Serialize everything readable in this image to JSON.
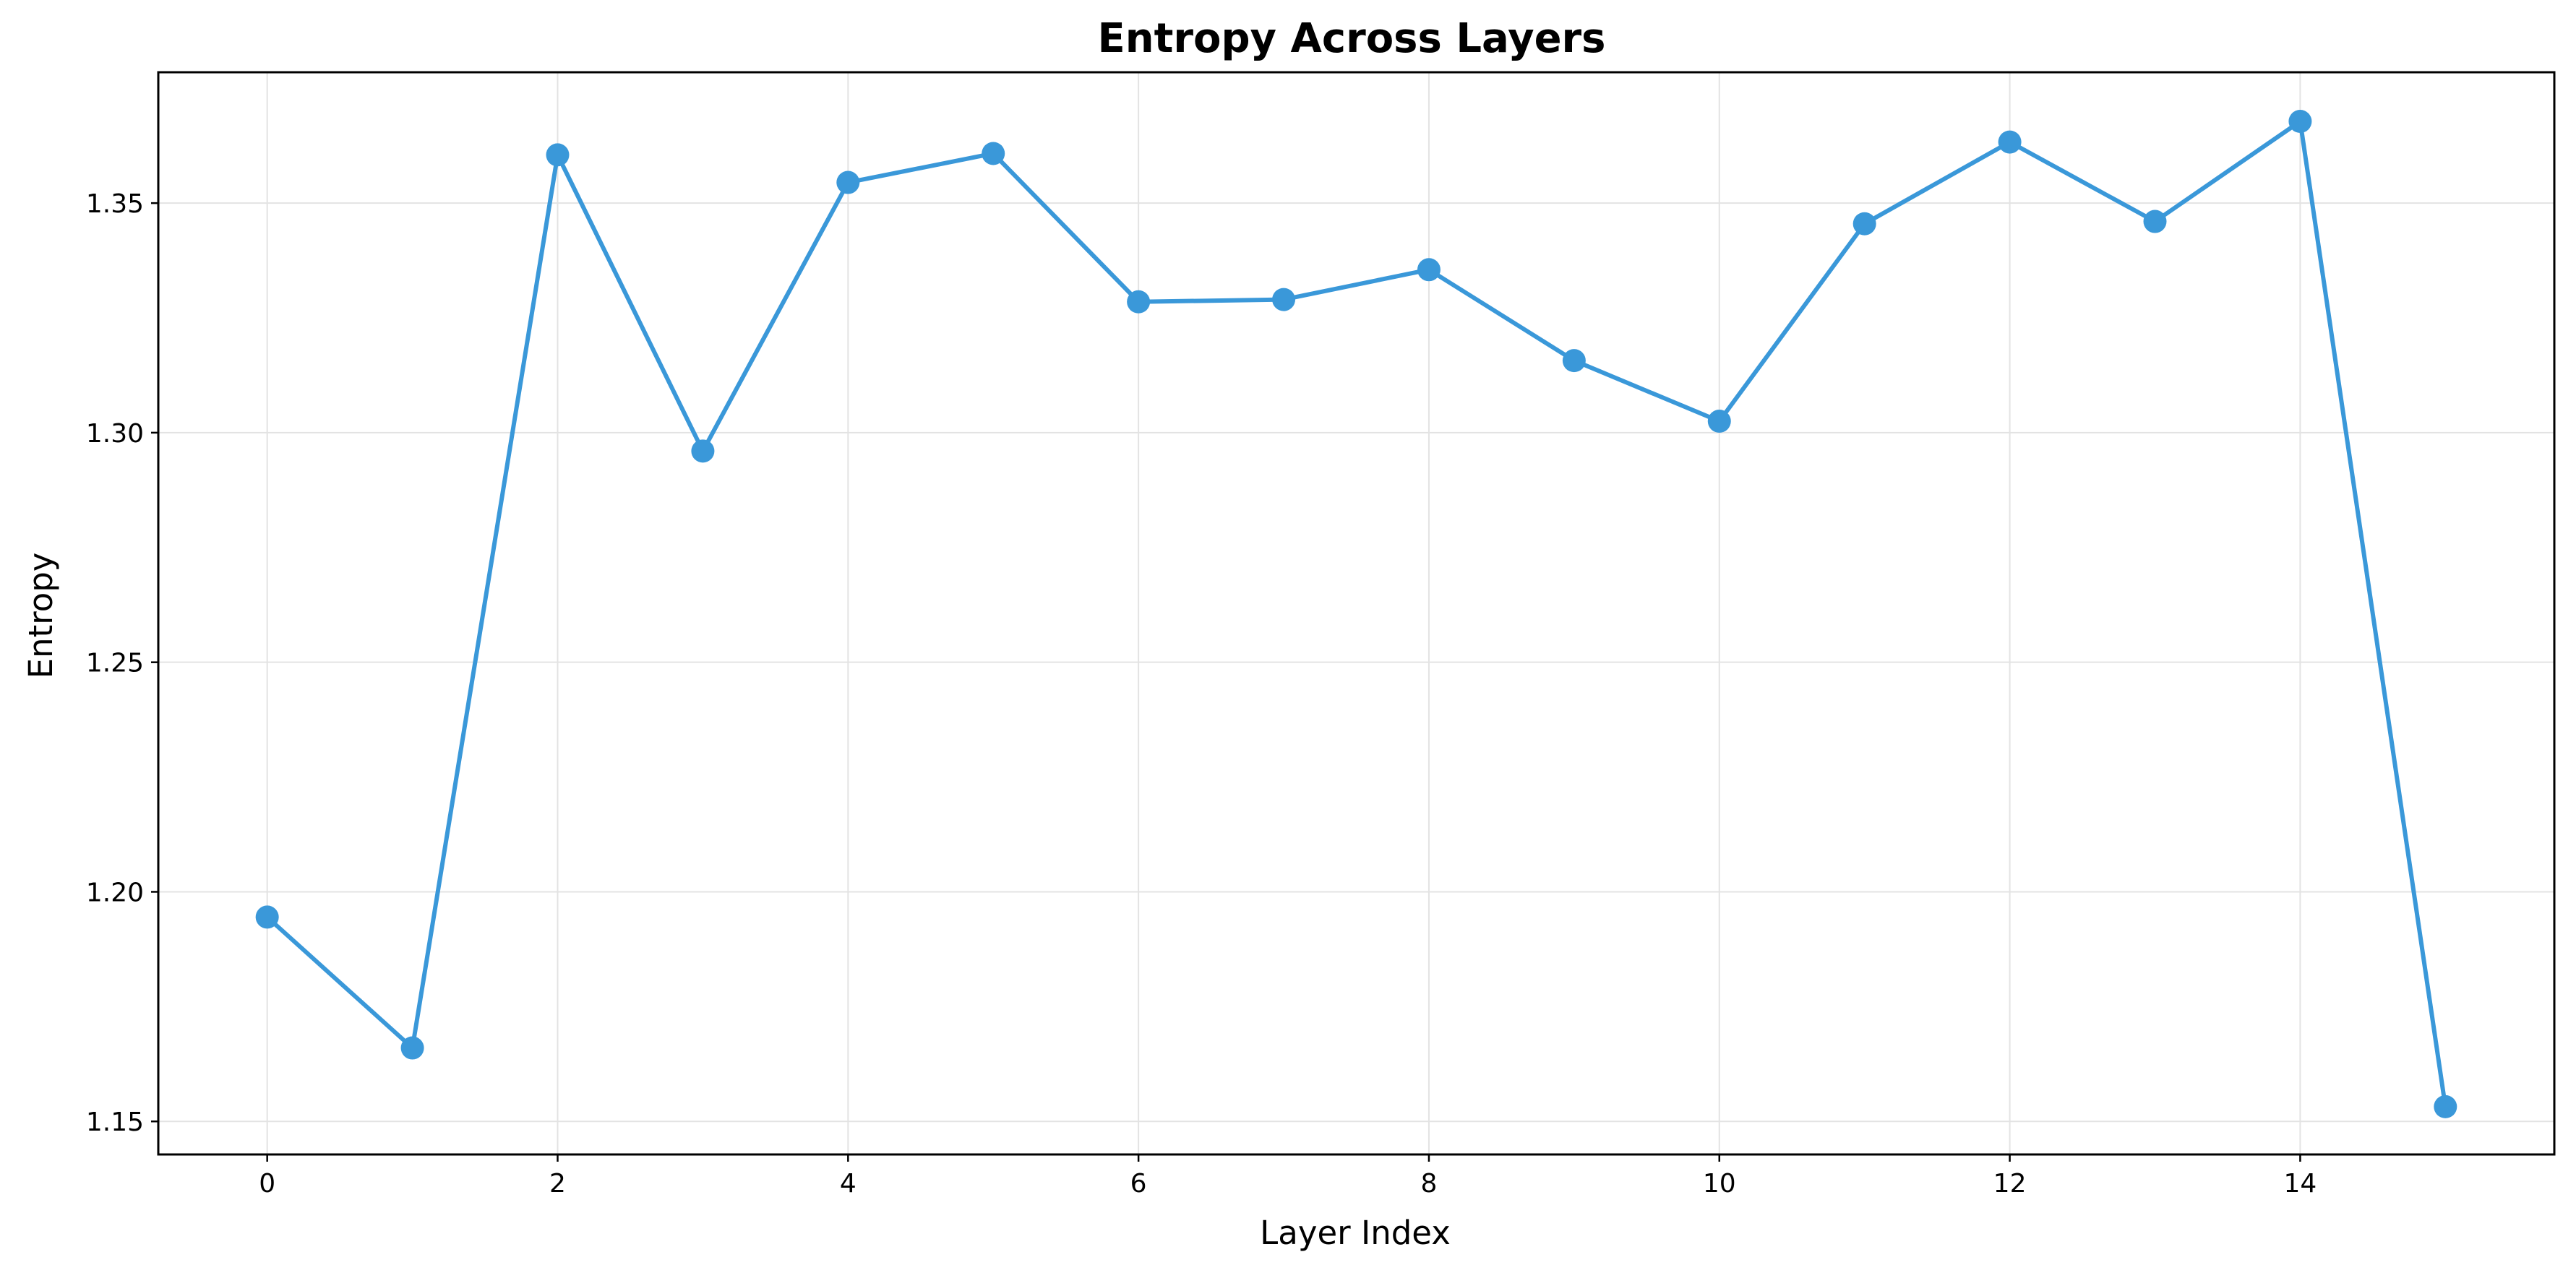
{
  "chart_data": {
    "type": "line",
    "title": "Entropy Across Layers",
    "xlabel": "Layer Index",
    "ylabel": "Entropy",
    "x": [
      0,
      1,
      2,
      3,
      4,
      5,
      6,
      7,
      8,
      9,
      10,
      11,
      12,
      13,
      14,
      15
    ],
    "series": [
      {
        "values": [
          1.1945,
          1.166,
          1.3605,
          1.296,
          1.3545,
          1.3608,
          1.3285,
          1.329,
          1.3355,
          1.3157,
          1.3025,
          1.3455,
          1.3633,
          1.346,
          1.3678,
          1.1532
        ],
        "color": "#3a98d9",
        "marker": "circle"
      }
    ],
    "xlim": [
      -0.75,
      15.75
    ],
    "ylim": [
      1.1428,
      1.3785
    ],
    "xticks": [
      "0",
      "2",
      "4",
      "6",
      "8",
      "10",
      "12",
      "14"
    ],
    "yticks": [
      "1.15",
      "1.20",
      "1.25",
      "1.30",
      "1.35"
    ],
    "grid": true,
    "grid_color": "#e3e3e3",
    "axis_color": "#000000"
  }
}
